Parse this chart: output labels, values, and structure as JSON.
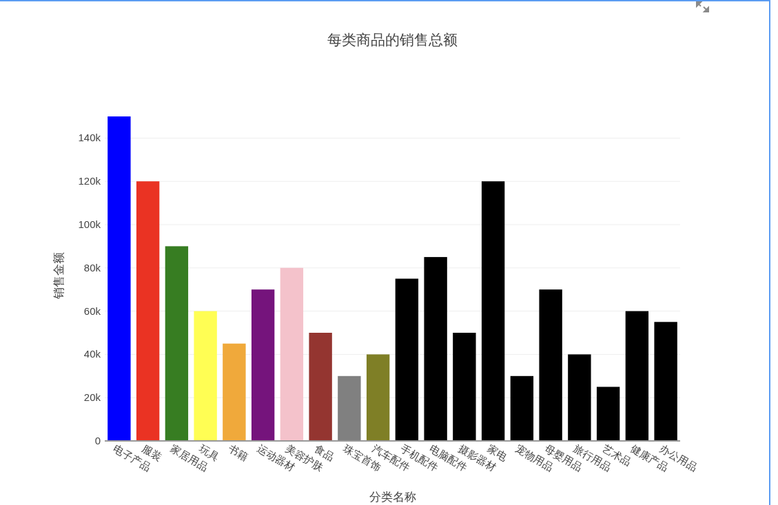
{
  "chart_data": {
    "type": "bar",
    "title": "每类商品的销售总额",
    "xlabel": "分类名称",
    "ylabel": "销售金额",
    "categories": [
      "电子产品",
      "服装",
      "家居用品",
      "玩具",
      "书籍",
      "运动器材",
      "美容护肤",
      "食品",
      "珠宝首饰",
      "汽车配件",
      "手机配件",
      "电脑配件",
      "摄影器材",
      "家电",
      "宠物用品",
      "母婴用品",
      "旅行用品",
      "艺术品",
      "健康产品",
      "办公用品"
    ],
    "values": [
      150000,
      120000,
      90000,
      60000,
      45000,
      70000,
      80000,
      50000,
      30000,
      40000,
      75000,
      85000,
      50000,
      120000,
      30000,
      70000,
      40000,
      25000,
      60000,
      55000
    ],
    "colors": [
      "#0000ff",
      "#ea3323",
      "#377d22",
      "#fffe54",
      "#f0a93b",
      "#75147c",
      "#f4c2cb",
      "#943530",
      "#808080",
      "#7f7f26",
      "#000000",
      "#000000",
      "#000000",
      "#000000",
      "#000000",
      "#000000",
      "#000000",
      "#000000",
      "#000000",
      "#000000"
    ],
    "ylim": [
      0,
      150000
    ],
    "yticks": [
      0,
      {
        "value": 20000,
        "label": "20k"
      },
      {
        "value": 40000,
        "label": "40k"
      },
      {
        "value": 60000,
        "label": "60k"
      },
      {
        "value": 80000,
        "label": "80k"
      },
      {
        "value": 100000,
        "label": "100k"
      },
      {
        "value": 120000,
        "label": "120k"
      },
      {
        "value": 140000,
        "label": "140k"
      }
    ],
    "grid": "y"
  }
}
